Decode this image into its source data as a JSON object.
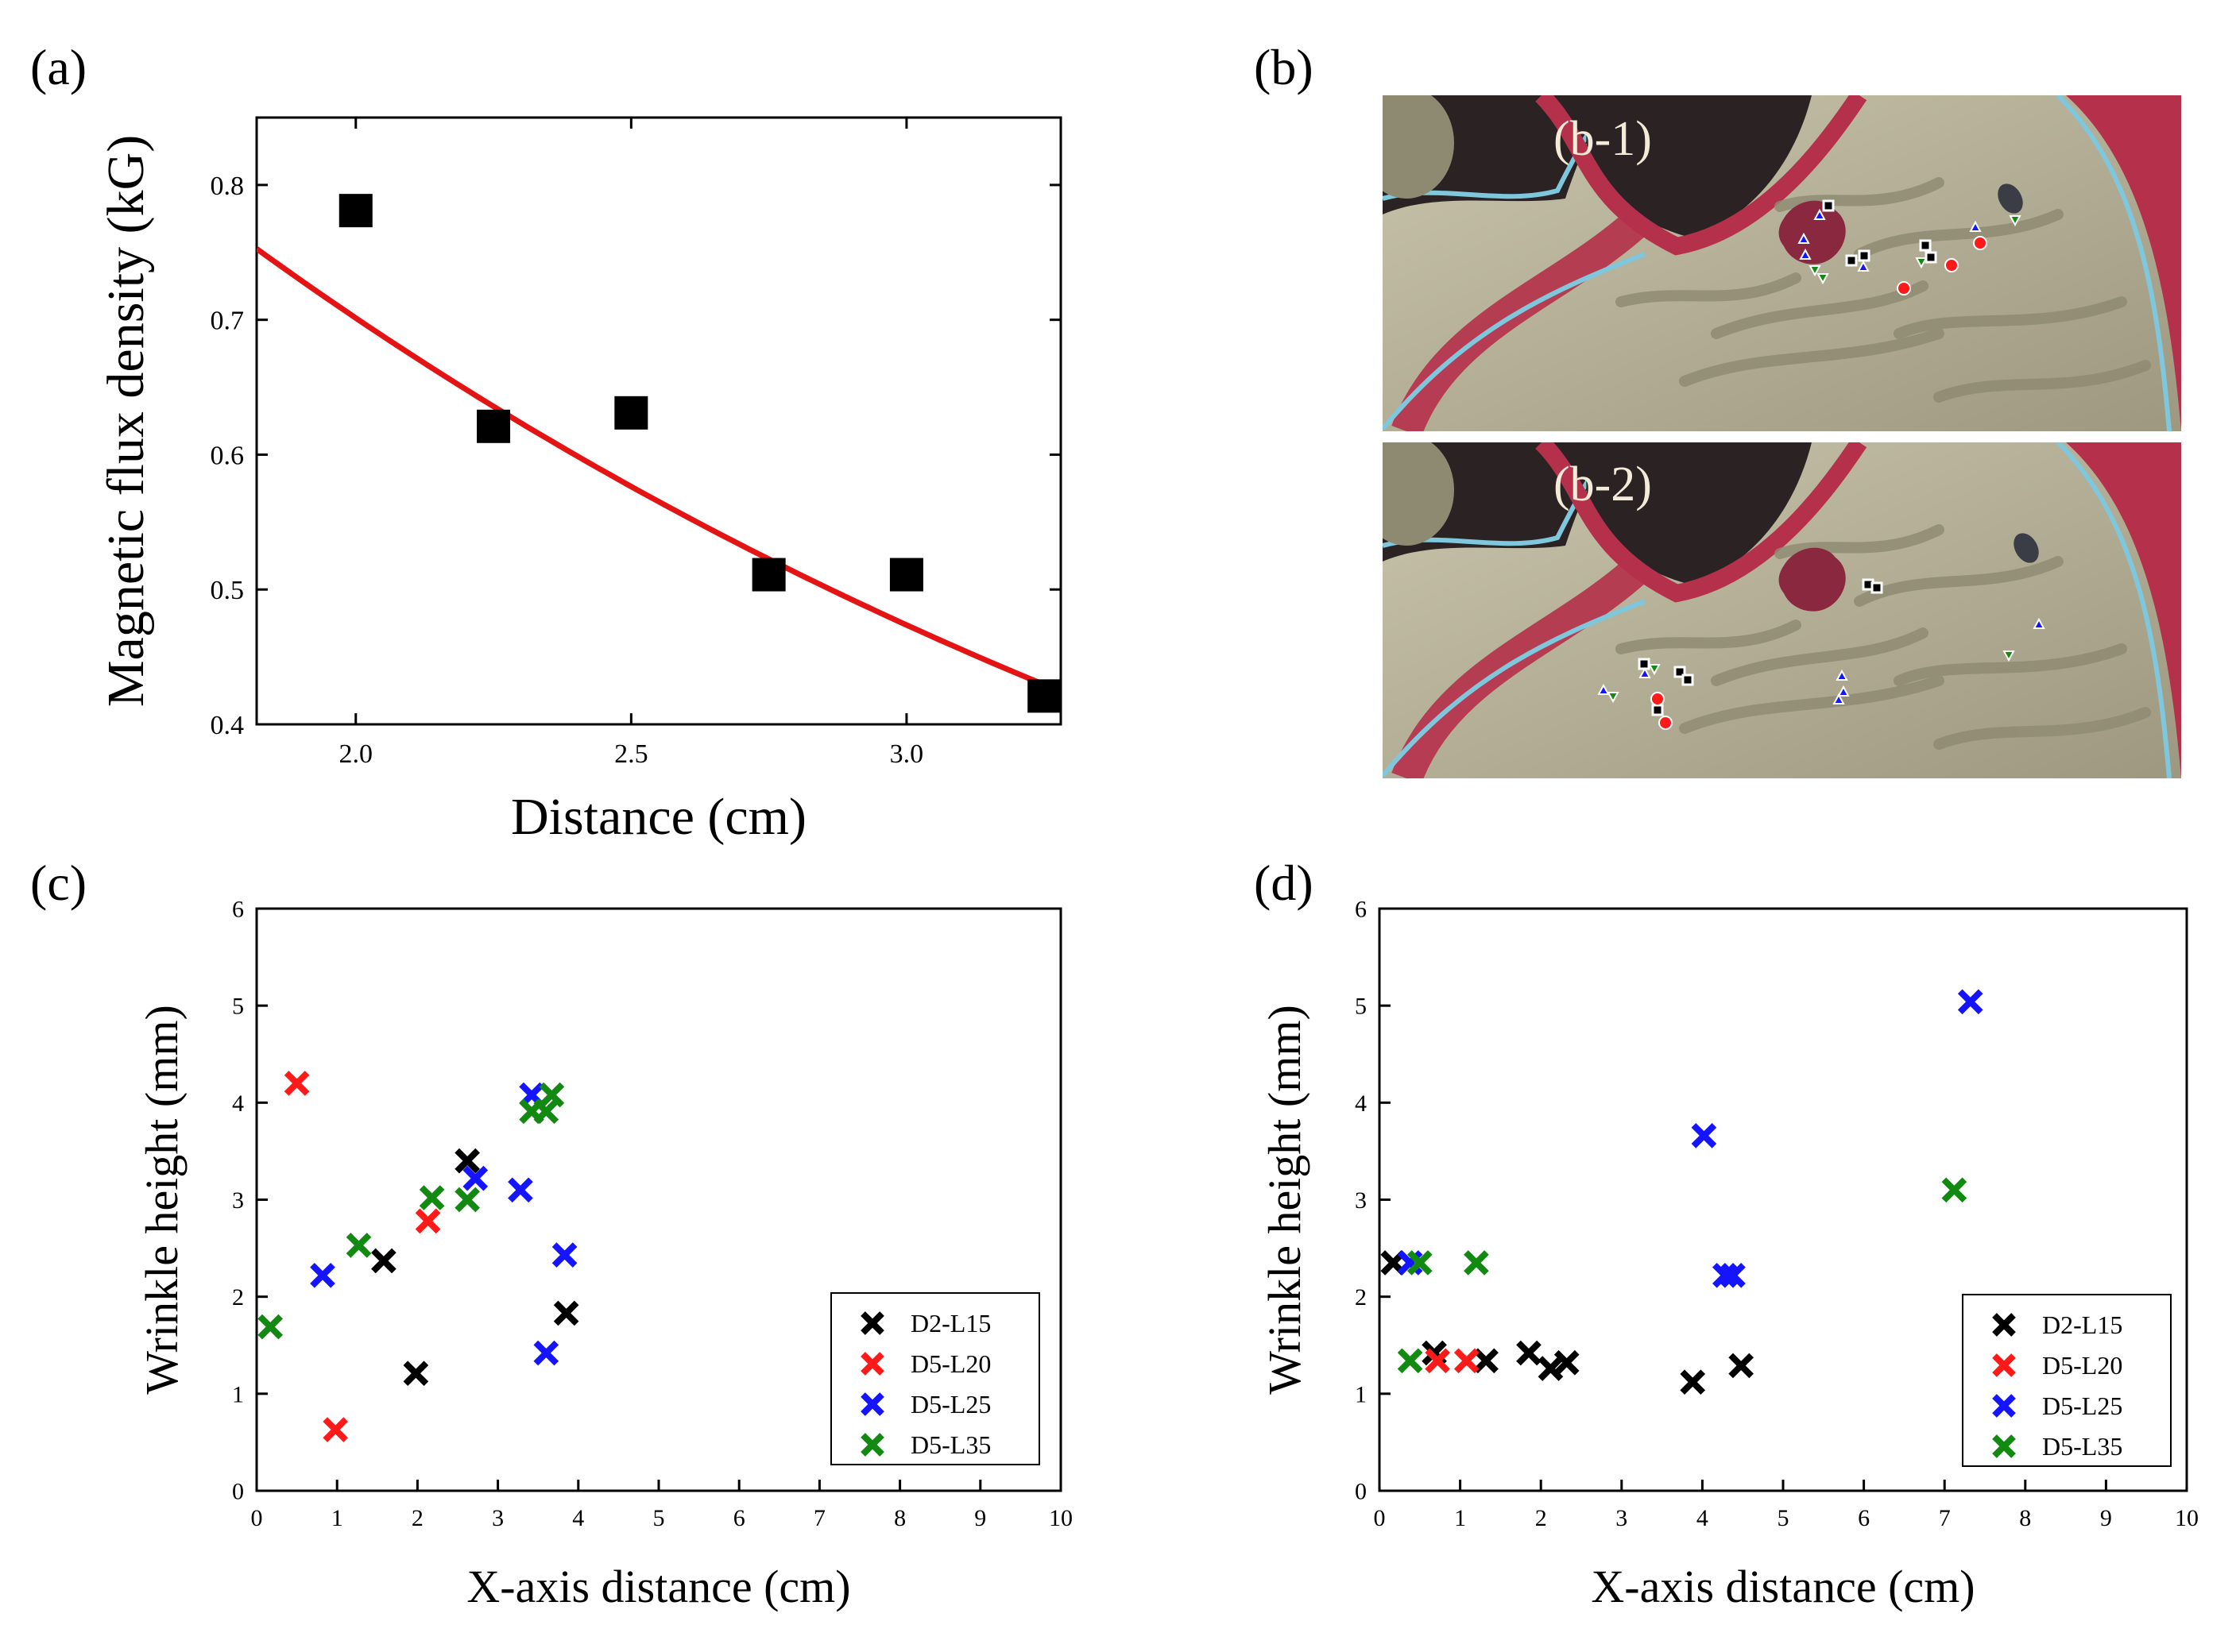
{
  "panel_labels": {
    "a": "(a)",
    "b": "(b)",
    "c": "(c)",
    "d": "(d)"
  },
  "photo": {
    "top_label": "(b-1)",
    "bottom_label": "(b-2)",
    "colors": {
      "background": "#2b2224",
      "mucosa": "#b7b29a",
      "fold": "#8e8a72",
      "rim": "#b5304a",
      "rim_light": "#7fc7dc",
      "lesion": "#8a2840"
    }
  },
  "chart_data": [
    {
      "id": "a",
      "type": "scatter",
      "title": "",
      "xlabel": "Distance (cm)",
      "ylabel": "Magnetic flux density (kG)",
      "xlim": [
        1.82,
        3.28
      ],
      "ylim": [
        0.4,
        0.85
      ],
      "xticks": [
        2.0,
        2.5,
        3.0
      ],
      "xtick_labels": [
        "2.0",
        "2.5",
        "3.0"
      ],
      "yticks": [
        0.4,
        0.5,
        0.6,
        0.7,
        0.8
      ],
      "ytick_labels": [
        "0.4",
        "0.5",
        "0.6",
        "0.7",
        "0.8"
      ],
      "points": {
        "x": [
          2.0,
          2.25,
          2.5,
          2.75,
          3.0,
          3.25
        ],
        "y": [
          0.781,
          0.621,
          0.631,
          0.511,
          0.511,
          0.421
        ],
        "color": "#000000",
        "marker": "square"
      },
      "fit": {
        "type": "exponential-decay",
        "color": "#e41414",
        "a": 1.5376,
        "b": -0.3925,
        "xrange": [
          1.82,
          3.28
        ]
      }
    },
    {
      "id": "c",
      "type": "scatter",
      "title": "",
      "xlabel": "X-axis distance (cm)",
      "ylabel": "Wrinkle height (mm)",
      "xlim": [
        0,
        10
      ],
      "ylim": [
        0,
        6
      ],
      "xticks": [
        0,
        1,
        2,
        3,
        4,
        5,
        6,
        7,
        8,
        9,
        10
      ],
      "xtick_labels": [
        "0",
        "1",
        "2",
        "3",
        "4",
        "5",
        "6",
        "7",
        "8",
        "9",
        "10"
      ],
      "yticks": [
        0,
        1,
        2,
        3,
        4,
        5,
        6
      ],
      "ytick_labels": [
        "0",
        "1",
        "2",
        "3",
        "4",
        "5",
        "6"
      ],
      "legend_position": "bottom-right",
      "series": [
        {
          "name": "D2-L15",
          "color": "#000000",
          "x": [
            1.58,
            1.98,
            2.62,
            3.85
          ],
          "y": [
            2.37,
            1.21,
            3.4,
            1.83
          ]
        },
        {
          "name": "D5-L20",
          "color": "#ff1a1a",
          "x": [
            0.5,
            0.98,
            2.13
          ],
          "y": [
            4.2,
            0.63,
            2.78
          ]
        },
        {
          "name": "D5-L25",
          "color": "#1414ff",
          "x": [
            0.82,
            2.72,
            3.28,
            3.42,
            3.6,
            3.83
          ],
          "y": [
            2.22,
            3.22,
            3.1,
            4.08,
            1.42,
            2.43
          ]
        },
        {
          "name": "D5-L35",
          "color": "#128a12",
          "x": [
            0.17,
            1.27,
            2.18,
            2.62,
            3.42,
            3.6,
            3.67
          ],
          "y": [
            1.69,
            2.53,
            3.02,
            3.0,
            3.91,
            3.91,
            4.08
          ]
        }
      ]
    },
    {
      "id": "d",
      "type": "scatter",
      "title": "",
      "xlabel": "X-axis distance (cm)",
      "ylabel": "Wrinkle height (mm)",
      "xlim": [
        0,
        10
      ],
      "ylim": [
        0,
        6
      ],
      "xticks": [
        0,
        1,
        2,
        3,
        4,
        5,
        6,
        7,
        8,
        9,
        10
      ],
      "xtick_labels": [
        "0",
        "1",
        "2",
        "3",
        "4",
        "5",
        "6",
        "7",
        "8",
        "9",
        "10"
      ],
      "yticks": [
        0,
        1,
        2,
        3,
        4,
        5,
        6
      ],
      "ytick_labels": [
        "0",
        "1",
        "2",
        "3",
        "4",
        "5",
        "6"
      ],
      "legend_position": "bottom-right",
      "series": [
        {
          "name": "D2-L15",
          "color": "#000000",
          "x": [
            0.17,
            0.68,
            1.32,
            1.85,
            2.12,
            2.32,
            3.88,
            4.48
          ],
          "y": [
            2.35,
            1.42,
            1.34,
            1.42,
            1.26,
            1.32,
            1.12,
            1.29
          ]
        },
        {
          "name": "D5-L20",
          "color": "#ff1a1a",
          "x": [
            0.72,
            1.08
          ],
          "y": [
            1.34,
            1.34
          ]
        },
        {
          "name": "D5-L25",
          "color": "#1414ff",
          "x": [
            0.38,
            4.02,
            4.28,
            4.38,
            7.32
          ],
          "y": [
            2.35,
            3.66,
            2.22,
            2.22,
            5.04
          ]
        },
        {
          "name": "D5-L35",
          "color": "#128a12",
          "x": [
            0.38,
            0.5,
            1.2,
            7.12
          ],
          "y": [
            1.34,
            2.35,
            2.35,
            3.1
          ]
        }
      ]
    }
  ]
}
